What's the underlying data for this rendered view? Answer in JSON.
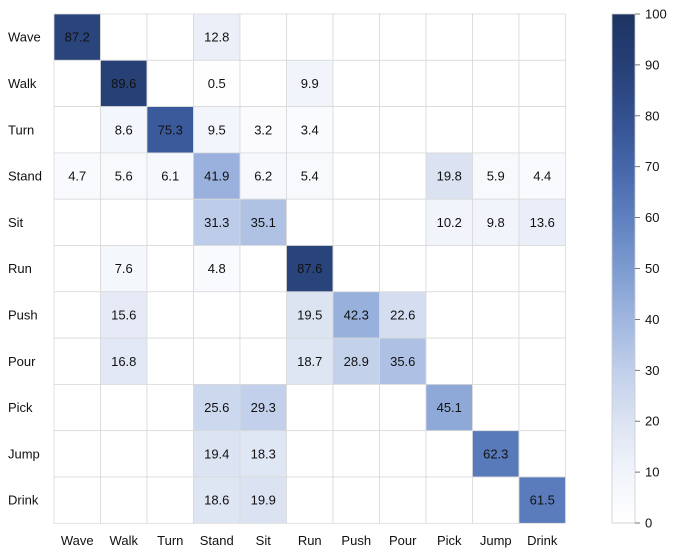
{
  "chart_data": {
    "type": "heatmap",
    "rows": [
      "Wave",
      "Walk",
      "Turn",
      "Stand",
      "Sit",
      "Run",
      "Push",
      "Pour",
      "Pick",
      "Jump",
      "Drink"
    ],
    "columns": [
      "Wave",
      "Walk",
      "Turn",
      "Stand",
      "Sit",
      "Run",
      "Push",
      "Pour",
      "Pick",
      "Jump",
      "Drink"
    ],
    "values": [
      [
        87.2,
        null,
        null,
        12.8,
        null,
        null,
        null,
        null,
        null,
        null,
        null
      ],
      [
        null,
        89.6,
        null,
        0.5,
        null,
        9.9,
        null,
        null,
        null,
        null,
        null
      ],
      [
        null,
        8.6,
        75.3,
        9.5,
        3.2,
        3.4,
        null,
        null,
        null,
        null,
        null
      ],
      [
        4.7,
        5.6,
        6.1,
        41.9,
        6.2,
        5.4,
        null,
        null,
        19.8,
        5.9,
        4.4
      ],
      [
        null,
        null,
        null,
        31.3,
        35.1,
        null,
        null,
        null,
        10.2,
        9.8,
        13.6
      ],
      [
        null,
        7.6,
        null,
        4.8,
        null,
        87.6,
        null,
        null,
        null,
        null,
        null
      ],
      [
        null,
        15.6,
        null,
        null,
        null,
        19.5,
        42.3,
        22.6,
        null,
        null,
        null
      ],
      [
        null,
        16.8,
        null,
        null,
        null,
        18.7,
        28.9,
        35.6,
        null,
        null,
        null
      ],
      [
        null,
        null,
        null,
        25.6,
        29.3,
        null,
        null,
        null,
        45.1,
        null,
        null
      ],
      [
        null,
        null,
        null,
        19.4,
        18.3,
        null,
        null,
        null,
        null,
        62.3,
        null
      ],
      [
        null,
        null,
        null,
        18.6,
        19.9,
        null,
        null,
        null,
        null,
        null,
        61.5
      ]
    ],
    "colorbar": {
      "min": 0,
      "max": 100,
      "ticks": [
        "0",
        "10",
        "20",
        "30",
        "40",
        "50",
        "60",
        "70",
        "80",
        "90",
        "100"
      ],
      "color_low": "#ffffff",
      "color_high": "#1d3461"
    },
    "grid": true
  }
}
